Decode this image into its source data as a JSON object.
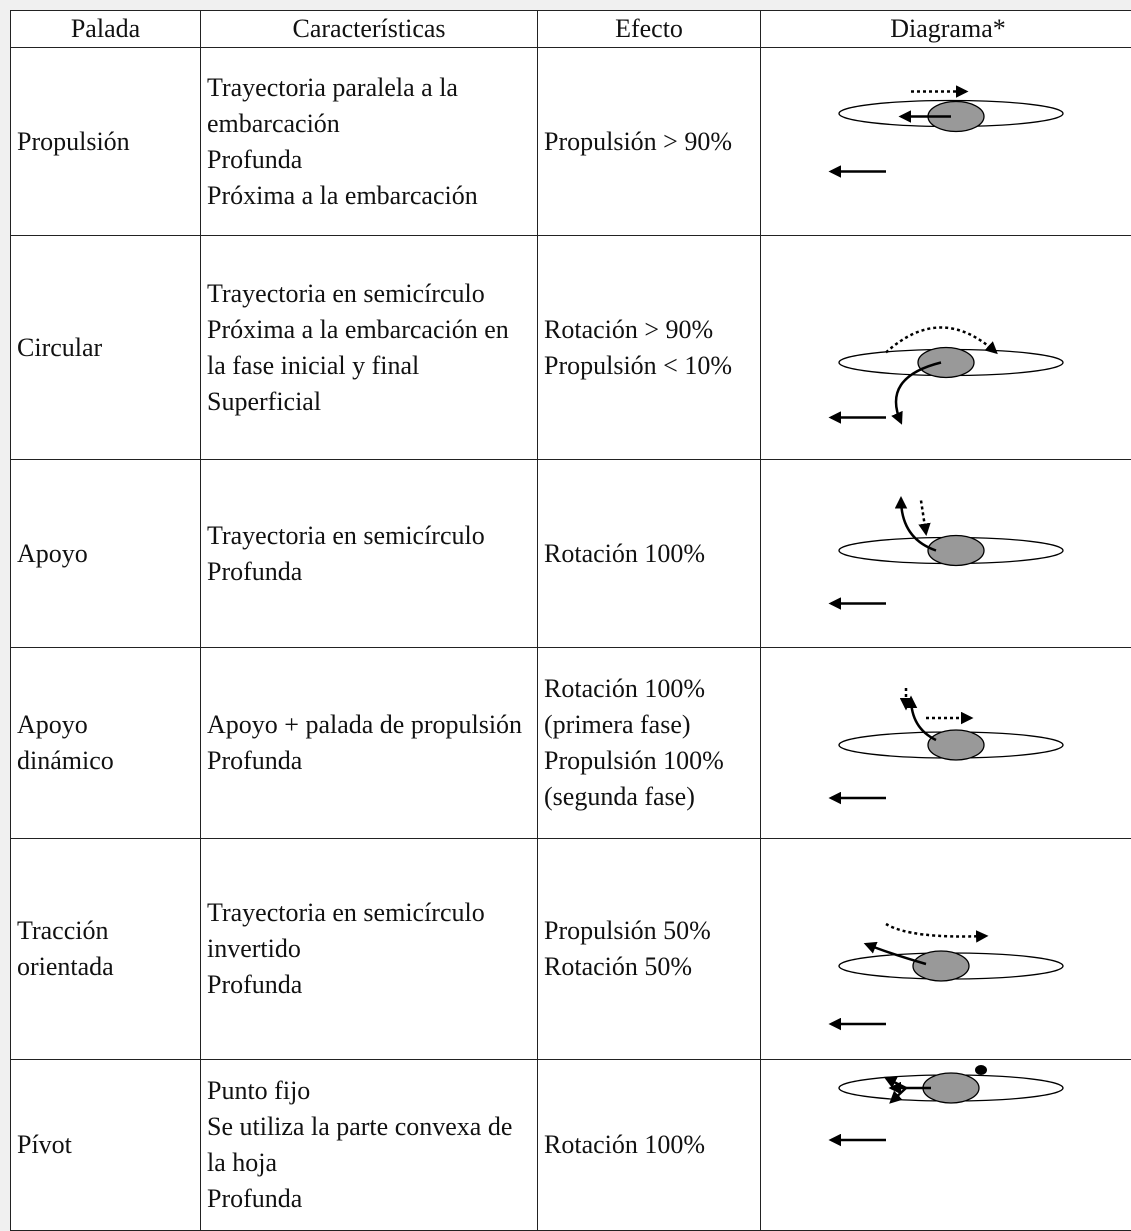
{
  "table": {
    "header": [
      "Palada",
      "Características",
      "Efecto",
      "Diagrama*"
    ],
    "rows": [
      {
        "palada": [
          "Propulsión"
        ],
        "caracteristicas": [
          "Trayectoria paralela a la embarcación",
          "Profunda",
          "Próxima a la embarcación"
        ],
        "efecto": [
          "Propulsión > 90%"
        ]
      },
      {
        "palada": [
          "Circular"
        ],
        "caracteristicas": [
          "Trayectoria en semicírculo",
          "Próxima a la embarcación en la fase inicial y final",
          "Superficial"
        ],
        "efecto": [
          "Rotación > 90%",
          "Propulsión < 10%"
        ]
      },
      {
        "palada": [
          "Apoyo"
        ],
        "caracteristicas": [
          "Trayectoria en semicírculo",
          "Profunda"
        ],
        "efecto": [
          "Rotación 100%"
        ]
      },
      {
        "palada": [
          "Apoyo",
          "dinámico"
        ],
        "caracteristicas": [
          "Apoyo + palada de propulsión",
          "Profunda"
        ],
        "efecto": [
          "Rotación 100% (primera fase)",
          "Propulsión 100% (segunda fase)"
        ]
      },
      {
        "palada": [
          "Tracción",
          "orientada"
        ],
        "caracteristicas": [
          "Trayectoria en semicírculo invertido",
          "Profunda"
        ],
        "efecto": [
          "Propulsión 50%",
          "Rotación 50%"
        ]
      },
      {
        "palada": [
          "Pívot"
        ],
        "caracteristicas": [
          "Punto fijo",
          "Se utiliza la parte convexa de la hoja",
          "Profunda"
        ],
        "efecto": [
          "Rotación 100%"
        ]
      }
    ]
  }
}
